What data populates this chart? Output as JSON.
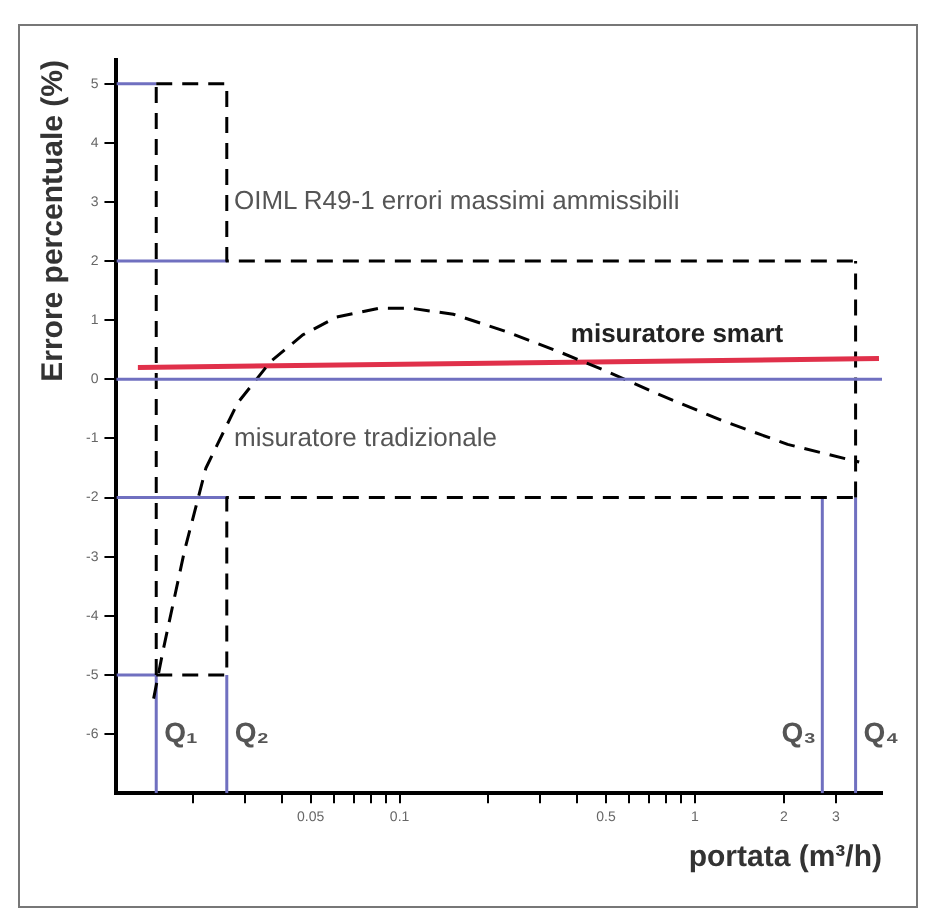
{
  "chart_data": {
    "type": "line",
    "xlabel": "portata (m³/h)",
    "ylabel": "Errore percentuale (%)",
    "log": "x",
    "grid": false,
    "legend": false,
    "marker": "none",
    "xlim": [
      0.011,
      4.3
    ],
    "xticks": [
      {
        "value": 0.02,
        "label": null
      },
      {
        "value": 0.03,
        "label": null
      },
      {
        "value": 0.04,
        "label": null
      },
      0.05,
      {
        "value": 0.06,
        "label": null
      },
      {
        "value": 0.07,
        "label": null
      },
      {
        "value": 0.08,
        "label": null
      },
      {
        "value": 0.09,
        "label": null
      },
      0.1,
      {
        "value": 0.2,
        "label": null
      },
      {
        "value": 0.3,
        "label": null
      },
      {
        "value": 0.4,
        "label": null
      },
      0.5,
      {
        "value": 0.6,
        "label": null
      },
      {
        "value": 0.7,
        "label": null
      },
      {
        "value": 0.8,
        "label": null
      },
      {
        "value": 0.9,
        "label": null
      },
      1,
      2,
      3
    ],
    "ylim": [
      -7,
      5.4
    ],
    "yticks": [
      -6,
      -5,
      -4,
      -3,
      -2,
      -1,
      0,
      1,
      2,
      3,
      4,
      5
    ],
    "ref_lines": [
      {
        "axis": "y",
        "value": 0,
        "color": "#7070c0"
      }
    ],
    "series": [
      {
        "color": "#000000",
        "line_style": "dashed",
        "x": [
          0.0147,
          0.0158,
          0.0187,
          0.0221,
          0.0283,
          0.0366,
          0.047,
          0.061,
          0.085,
          0.11,
          0.152,
          0.232,
          0.353,
          0.494,
          0.75,
          1.24,
          2.06,
          3.6
        ],
        "values": [
          -5.4,
          -4.6,
          -2.9,
          -1.5,
          -0.4,
          0.3,
          0.75,
          1.05,
          1.2,
          1.2,
          1.1,
          0.8,
          0.45,
          0.15,
          -0.25,
          -0.7,
          -1.1,
          -1.4
        ]
      },
      {
        "color": "#e0304a",
        "line_style": "solid",
        "x": [
          0.013,
          4.2
        ],
        "values": [
          0.2,
          0.35
        ]
      },
      {
        "color": "#000000",
        "line_style": "dashed",
        "x": [
          0.015,
          0.026,
          0.026,
          3.5
        ],
        "values": [
          5,
          5,
          2,
          2
        ]
      },
      {
        "color": "#000000",
        "line_style": "dashed",
        "x": [
          0.015,
          0.026,
          0.026,
          3.5
        ],
        "values": [
          -5,
          -5,
          -2,
          -2
        ]
      },
      {
        "color": "#000000",
        "line_style": "dashed",
        "x": [
          0.015,
          0.015
        ],
        "values": [
          -5,
          5
        ]
      },
      {
        "color": "#000000",
        "line_style": "dashed",
        "x": [
          3.5,
          3.5
        ],
        "values": [
          -2,
          2
        ]
      },
      {
        "color": "#7070c0",
        "line_style": "solid",
        "x": [
          0.011,
          0.015
        ],
        "values": [
          5,
          5
        ]
      },
      {
        "color": "#7070c0",
        "line_style": "solid",
        "x": [
          0.011,
          0.026
        ],
        "values": [
          2,
          2
        ]
      },
      {
        "color": "#7070c0",
        "line_style": "solid",
        "x": [
          0.011,
          0.026
        ],
        "values": [
          -2,
          -2
        ]
      },
      {
        "color": "#7070c0",
        "line_style": "solid",
        "x": [
          0.011,
          0.015
        ],
        "values": [
          -5,
          -5
        ]
      },
      {
        "color": "#7070c0",
        "line_style": "solid",
        "x": [
          0.015,
          0.015
        ],
        "values": [
          -7,
          -5
        ]
      },
      {
        "color": "#7070c0",
        "line_style": "solid",
        "x": [
          0.026,
          0.026
        ],
        "values": [
          -7,
          -5
        ]
      },
      {
        "color": "#7070c0",
        "line_style": "solid",
        "x": [
          2.7,
          2.7
        ],
        "values": [
          -7,
          -2
        ]
      },
      {
        "color": "#7070c0",
        "line_style": "solid",
        "x": [
          3.5,
          3.5
        ],
        "values": [
          -7,
          -2
        ]
      }
    ],
    "annotations": [
      "OIML R49-1 errori massimi ammissibili",
      "misuratore smart",
      "misuratore tradizionale",
      {
        "text": "Q₁",
        "x": 0.015,
        "y": -6
      },
      {
        "text": "Q₂",
        "x": 0.026,
        "y": -6
      },
      {
        "text": "Q₃",
        "x": 2.7,
        "y": -6
      },
      {
        "text": "Q₄",
        "x": 3.5,
        "y": -6
      }
    ]
  }
}
